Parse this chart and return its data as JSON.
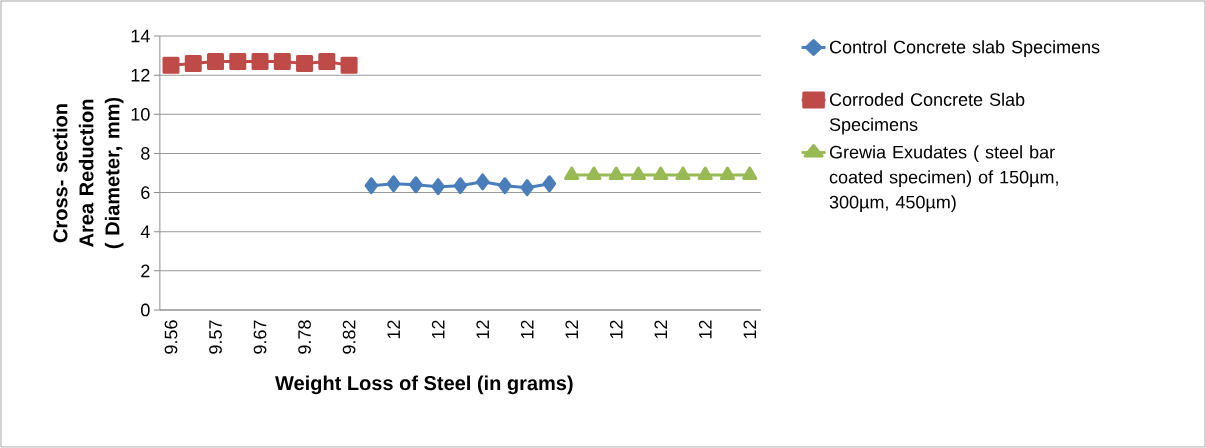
{
  "chart_data": {
    "type": "line",
    "xlabel": "Weight Loss  of Steel (in grams)",
    "ylabel": "Cross- section Area Reduction ( Diameter, mm)",
    "categories": [
      "9.56",
      null,
      "9.57",
      null,
      "9.67",
      null,
      "9.78",
      null,
      "9.82",
      null,
      "12",
      null,
      "12",
      null,
      "12",
      null,
      "12",
      null,
      "12",
      null,
      "12",
      null,
      "12",
      null,
      "12",
      null,
      "12"
    ],
    "series": [
      {
        "name": "Control  Concrete slab Specimens",
        "color": "#4a7ebb",
        "marker": "diamond",
        "values": [
          null,
          null,
          null,
          null,
          null,
          null,
          null,
          null,
          null,
          6.35,
          6.45,
          6.4,
          6.3,
          6.35,
          6.55,
          6.35,
          6.25,
          6.45,
          null,
          null,
          null,
          null,
          null,
          null,
          null,
          null,
          null
        ]
      },
      {
        "name": "Corroded  Concrete Slab Specimens",
        "color": "#be4b48",
        "marker": "square",
        "values": [
          12.5,
          12.6,
          12.7,
          12.7,
          12.7,
          12.7,
          12.6,
          12.7,
          12.5,
          null,
          null,
          null,
          null,
          null,
          null,
          null,
          null,
          null,
          null,
          null,
          null,
          null,
          null,
          null,
          null,
          null,
          null
        ]
      },
      {
        "name": "Grewia Exudates ( steel bar coated specimen)  of 150µm, 300µm, 450µm)",
        "color": "#98b954",
        "marker": "triangle",
        "values": [
          null,
          null,
          null,
          null,
          null,
          null,
          null,
          null,
          null,
          null,
          null,
          null,
          null,
          null,
          null,
          null,
          null,
          null,
          6.9,
          6.9,
          6.9,
          6.9,
          6.9,
          6.9,
          6.9,
          6.9,
          6.9
        ]
      }
    ],
    "ylim": [
      0,
      14
    ],
    "yticks": [
      0,
      2,
      4,
      6,
      8,
      10,
      12,
      14
    ],
    "grid": "y",
    "legend": "right"
  }
}
